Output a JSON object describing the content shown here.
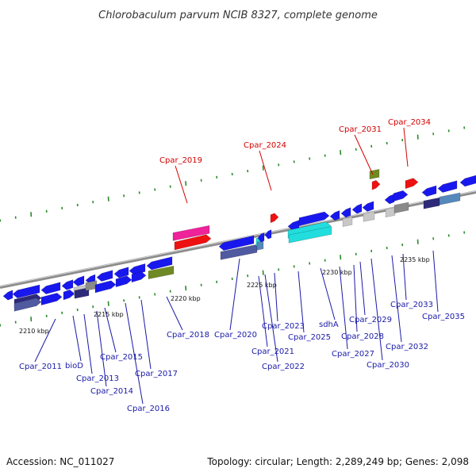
{
  "title": "Chlorobaculum parvum NCIB 8327, complete genome",
  "footer": {
    "accession": "Accession: NC_011027",
    "summary": "Topology: circular; Length: 2,289,249 bp; Genes: 2,098"
  },
  "colors": {
    "blue": "#1818ee",
    "navy": "#2e2a7a",
    "slate": "#4f5aa0",
    "steel": "#5588bb",
    "cyan": "#22dddd",
    "magenta": "#ee2299",
    "red": "#ee1111",
    "olive": "#6f8a22",
    "gray": "#8a8a8a",
    "lightgray": "#c8c8c8",
    "backbone": "#8c8c8c",
    "tick": "#2a8a2a",
    "label_blue": "#1a1aa8",
    "label_red": "#d40000"
  },
  "scale_labels": [
    {
      "text": "2210 kbp"
    },
    {
      "text": "2215 kbp"
    },
    {
      "text": "2220 kbp"
    },
    {
      "text": "2225 kbp"
    },
    {
      "text": "2230 kbp"
    },
    {
      "text": "2235 kbp"
    }
  ],
  "gene_labels": [
    {
      "text": "Cpar_2011",
      "color": "blue"
    },
    {
      "text": "bioD",
      "color": "blue"
    },
    {
      "text": "Cpar_2013",
      "color": "blue"
    },
    {
      "text": "Cpar_2014",
      "color": "blue"
    },
    {
      "text": "Cpar_2015",
      "color": "blue"
    },
    {
      "text": "Cpar_2016",
      "color": "blue"
    },
    {
      "text": "Cpar_2017",
      "color": "blue"
    },
    {
      "text": "Cpar_2018",
      "color": "blue"
    },
    {
      "text": "Cpar_2019",
      "color": "red"
    },
    {
      "text": "Cpar_2020",
      "color": "blue"
    },
    {
      "text": "Cpar_2021",
      "color": "blue"
    },
    {
      "text": "Cpar_2022",
      "color": "blue"
    },
    {
      "text": "Cpar_2023",
      "color": "blue"
    },
    {
      "text": "Cpar_2024",
      "color": "red"
    },
    {
      "text": "Cpar_2025",
      "color": "blue"
    },
    {
      "text": "sdhA",
      "color": "blue"
    },
    {
      "text": "Cpar_2027",
      "color": "blue"
    },
    {
      "text": "Cpar_2028",
      "color": "blue"
    },
    {
      "text": "Cpar_2029",
      "color": "blue"
    },
    {
      "text": "Cpar_2030",
      "color": "blue"
    },
    {
      "text": "Cpar_2031",
      "color": "red"
    },
    {
      "text": "Cpar_2032",
      "color": "blue"
    },
    {
      "text": "Cpar_2033",
      "color": "blue"
    },
    {
      "text": "Cpar_2034",
      "color": "red"
    },
    {
      "text": "Cpar_2035",
      "color": "blue"
    }
  ]
}
